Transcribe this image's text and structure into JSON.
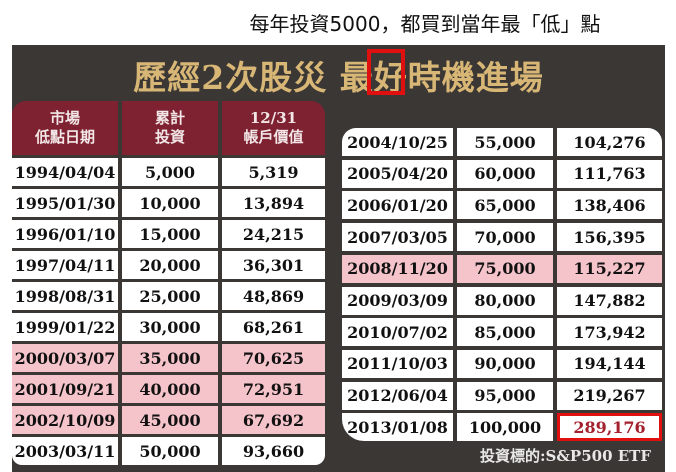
{
  "caption": "每年投資5000，都買到當年最「低」點",
  "title": "歷經2次股災 最好時機進場",
  "headers": [
    "市場\n低點日期",
    "累計\n投資",
    "12/31\n帳戶價值"
  ],
  "left_rows": [
    {
      "date": "1994/04/04",
      "invest": "5,000",
      "value": "5,319",
      "highlight": false
    },
    {
      "date": "1995/01/30",
      "invest": "10,000",
      "value": "13,894",
      "highlight": false
    },
    {
      "date": "1996/01/10",
      "invest": "15,000",
      "value": "24,215",
      "highlight": false
    },
    {
      "date": "1997/04/11",
      "invest": "20,000",
      "value": "36,301",
      "highlight": false
    },
    {
      "date": "1998/08/31",
      "invest": "25,000",
      "value": "48,869",
      "highlight": false
    },
    {
      "date": "1999/01/22",
      "invest": "30,000",
      "value": "68,261",
      "highlight": false
    },
    {
      "date": "2000/03/07",
      "invest": "35,000",
      "value": "70,625",
      "highlight": true
    },
    {
      "date": "2001/09/21",
      "invest": "40,000",
      "value": "72,951",
      "highlight": true
    },
    {
      "date": "2002/10/09",
      "invest": "45,000",
      "value": "67,692",
      "highlight": true
    },
    {
      "date": "2003/03/11",
      "invest": "50,000",
      "value": "93,660",
      "highlight": false
    }
  ],
  "right_rows": [
    {
      "date": "2004/10/25",
      "invest": "55,000",
      "value": "104,276",
      "highlight": false
    },
    {
      "date": "2005/04/20",
      "invest": "60,000",
      "value": "111,763",
      "highlight": false
    },
    {
      "date": "2006/01/20",
      "invest": "65,000",
      "value": "138,406",
      "highlight": false
    },
    {
      "date": "2007/03/05",
      "invest": "70,000",
      "value": "156,395",
      "highlight": false
    },
    {
      "date": "2008/11/20",
      "invest": "75,000",
      "value": "115,227",
      "highlight": true
    },
    {
      "date": "2009/03/09",
      "invest": "80,000",
      "value": "147,882",
      "highlight": false
    },
    {
      "date": "2010/07/02",
      "invest": "85,000",
      "value": "173,942",
      "highlight": false
    },
    {
      "date": "2011/10/03",
      "invest": "90,000",
      "value": "194,144",
      "highlight": false
    },
    {
      "date": "2012/06/04",
      "invest": "95,000",
      "value": "219,267",
      "highlight": false
    },
    {
      "date": "2013/01/08",
      "invest": "100,000",
      "value": "289,176",
      "highlight": false
    }
  ],
  "footer": "投資標的:S&P500 ETF",
  "colors": {
    "panel": "#3b3735",
    "title": "#d8b776",
    "header": "#7e2232",
    "highlight": "#f5c4cb",
    "emphasis": "#e01010"
  }
}
